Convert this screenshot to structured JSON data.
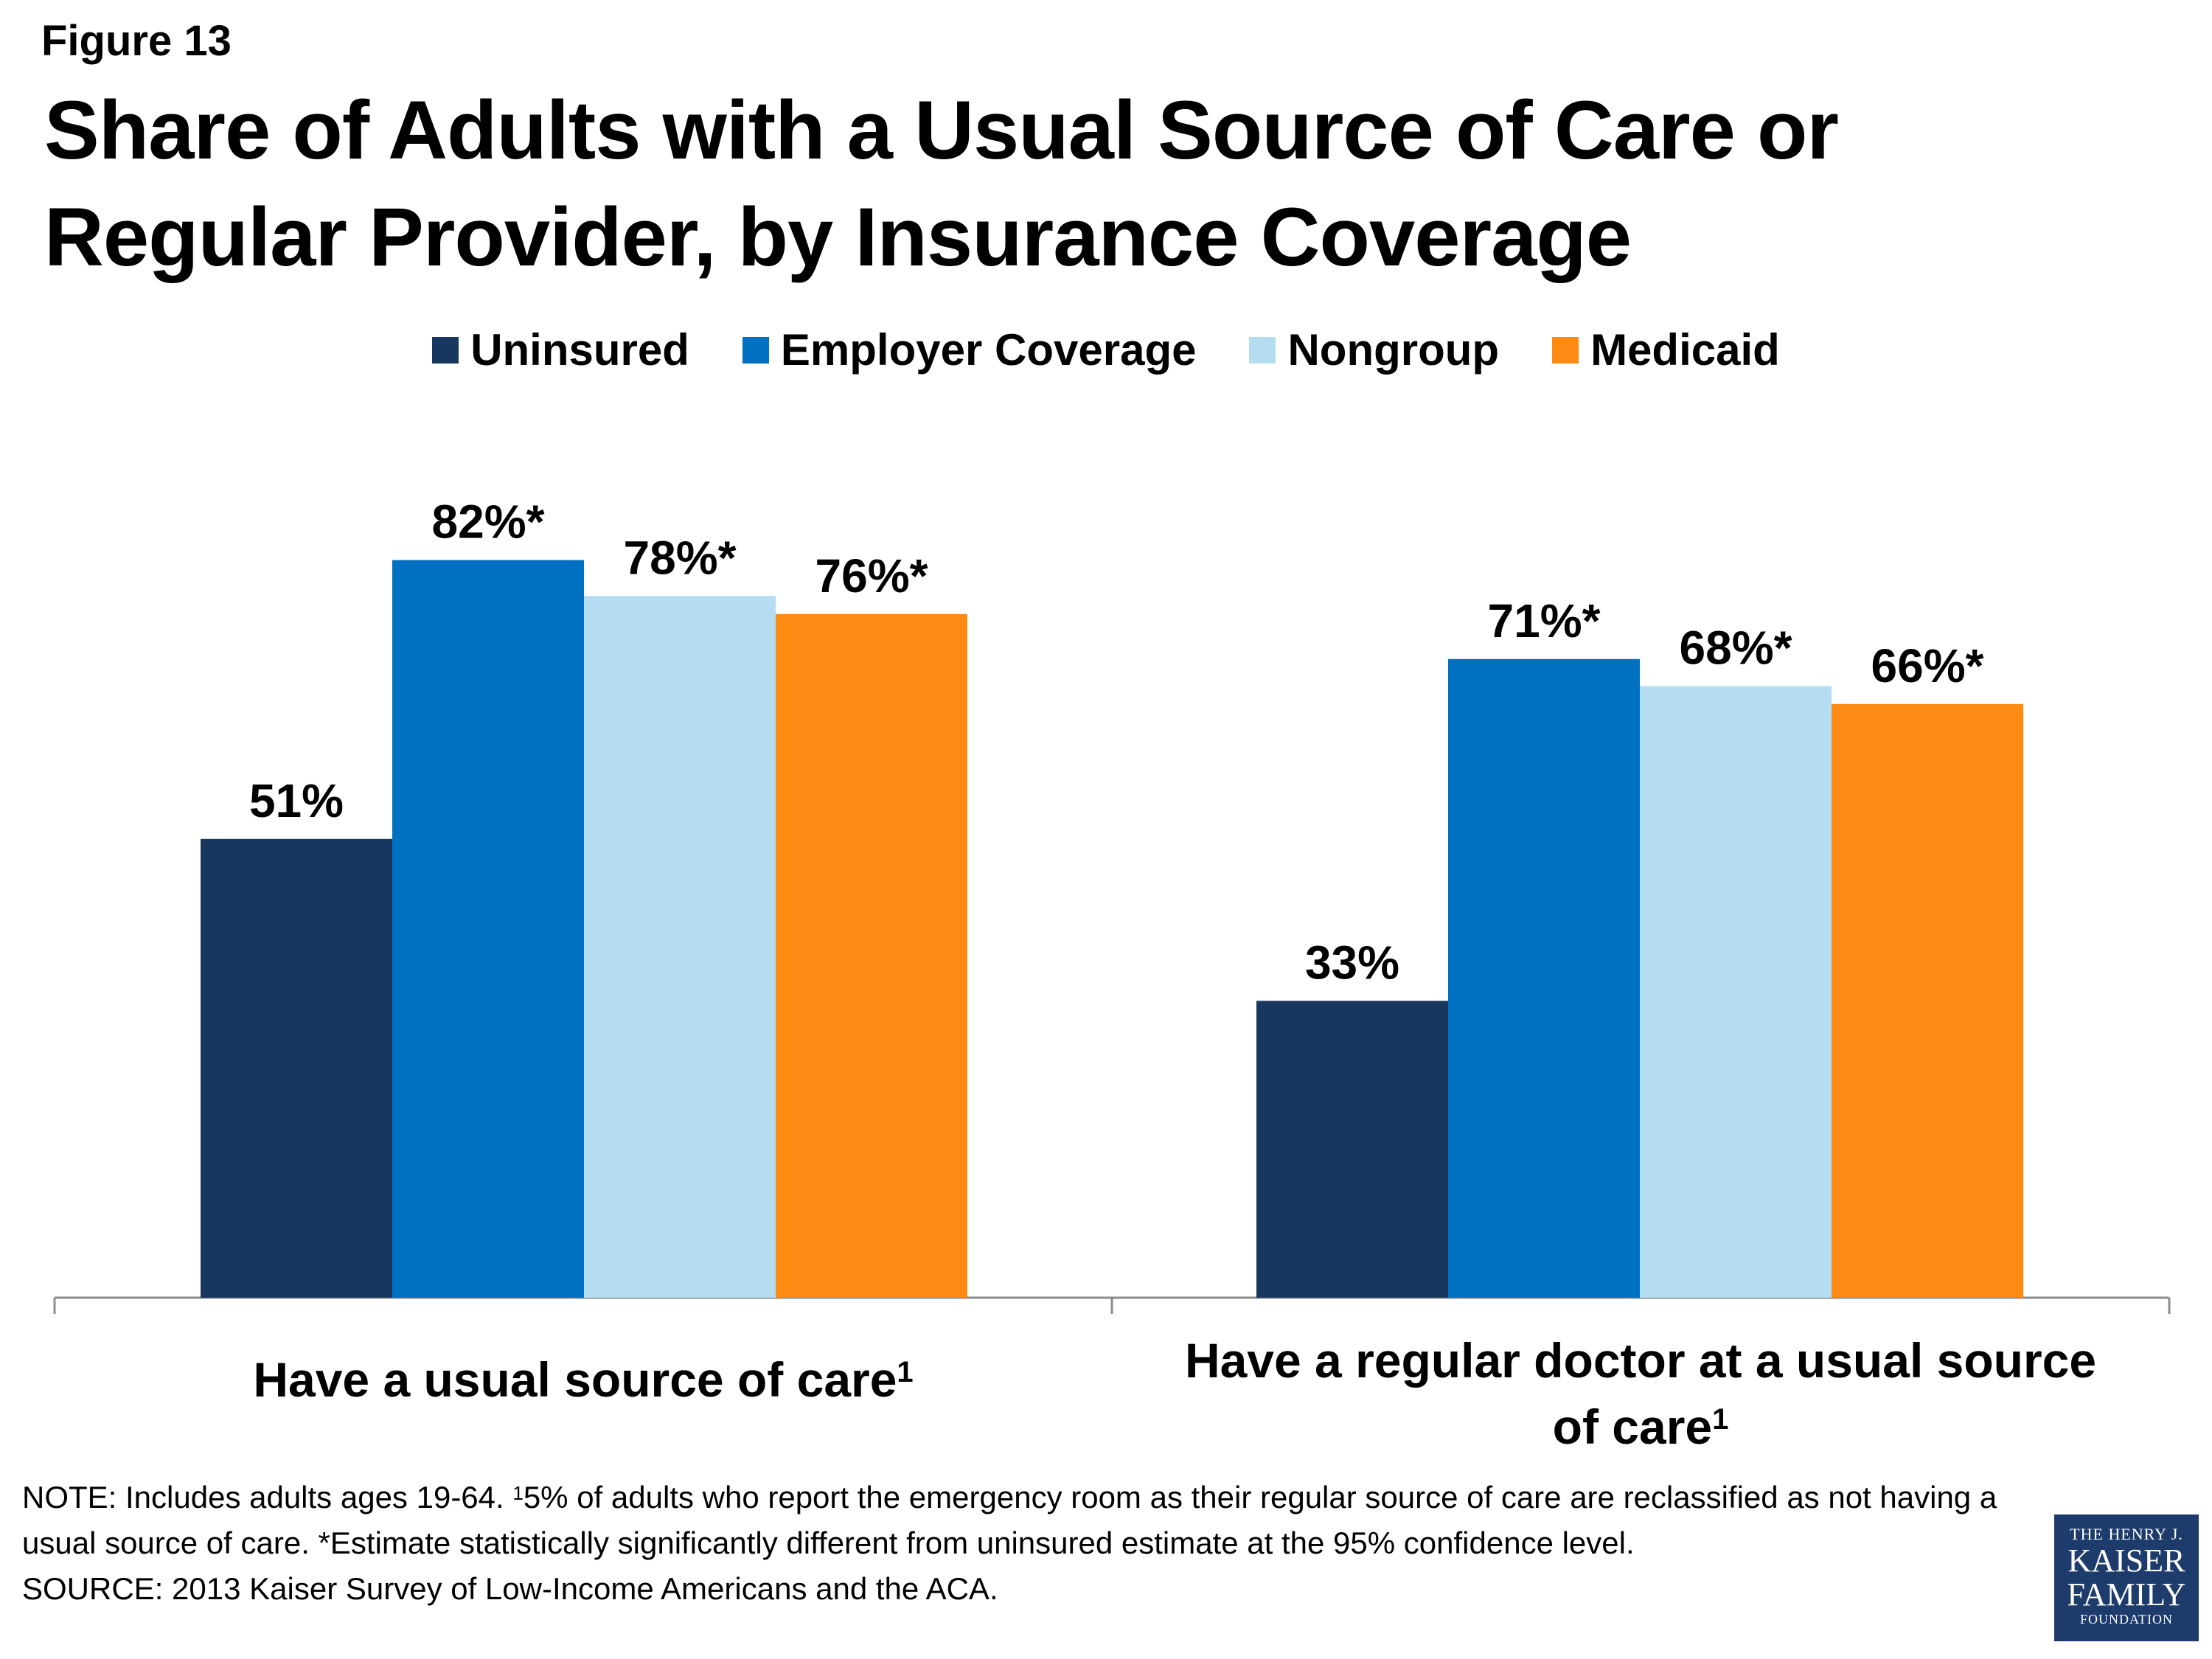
{
  "figure_label": "Figure 13",
  "title": "Share of Adults with a Usual Source of Care or Regular Provider, by Insurance Coverage",
  "chart_data": {
    "type": "bar",
    "categories": [
      "Have a usual source of care",
      "Have a regular doctor at a usual source of care"
    ],
    "category_superscripts": [
      "1",
      "1"
    ],
    "series": [
      {
        "name": "Uninsured",
        "color": "#17375e",
        "values": [
          51,
          33
        ],
        "labels": [
          "51%",
          "33%"
        ]
      },
      {
        "name": "Employer Coverage",
        "color": "#0070c0",
        "values": [
          82,
          71
        ],
        "labels": [
          "82%*",
          "71%*"
        ]
      },
      {
        "name": "Nongroup",
        "color": "#b4ddf2",
        "values": [
          78,
          68
        ],
        "labels": [
          "78%*",
          "68%*"
        ]
      },
      {
        "name": "Medicaid",
        "color": "#fd8a13",
        "values": [
          76,
          66
        ],
        "labels": [
          "76%*",
          "66%*"
        ]
      }
    ],
    "ylim": [
      0,
      100
    ],
    "legend_position": "top",
    "grid": false
  },
  "note": {
    "line_pre": "NOTE: Includes adults ages 19-64. ",
    "sup": "1",
    "line_post": "5% of adults who report the emergency room as their regular source of care are reclassified as not having a usual source of care. *Estimate statistically significantly different from uninsured estimate at the 95% confidence level.",
    "source": "SOURCE: 2013 Kaiser Survey of Low-Income Americans and the ACA."
  },
  "logo": {
    "line1": "THE HENRY J.",
    "line2": "KAISER",
    "line3": "FAMILY",
    "line4": "FOUNDATION"
  }
}
